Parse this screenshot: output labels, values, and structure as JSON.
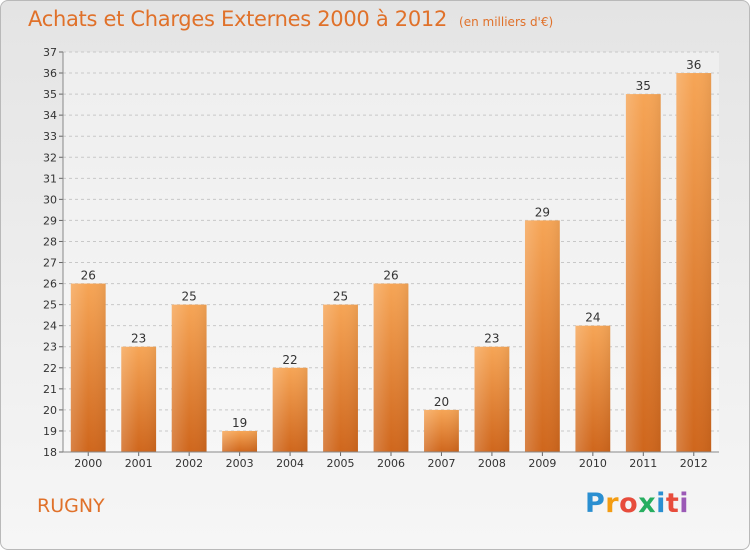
{
  "header": {
    "title": "Achats et Charges Externes 2000 à 2012",
    "unit": "(en milliers d'€)"
  },
  "footer": {
    "town": "RUGNY",
    "brand": "Proxiti",
    "brand_colors": [
      "#2a8fd1",
      "#f39c12",
      "#e74c3c",
      "#27ae60",
      "#2a8fd1",
      "#e74c3c",
      "#9b59b6"
    ]
  },
  "colors": {
    "accent": "#e0712a",
    "bar_top": "#f6a556",
    "bar_bottom": "#cf661c",
    "grid": "#c8c8c8",
    "axis_text": "#333333"
  },
  "chart_data": {
    "type": "bar",
    "title": "Achats et Charges Externes 2000 à 2012",
    "xlabel": "",
    "ylabel": "",
    "categories": [
      "2000",
      "2001",
      "2002",
      "2003",
      "2004",
      "2005",
      "2006",
      "2007",
      "2008",
      "2009",
      "2010",
      "2011",
      "2012"
    ],
    "values": [
      26,
      23,
      25,
      19,
      22,
      25,
      26,
      20,
      23,
      29,
      24,
      35,
      36
    ],
    "ylim": [
      18,
      37
    ],
    "yticks": [
      18,
      19,
      20,
      21,
      22,
      23,
      24,
      25,
      26,
      27,
      28,
      29,
      30,
      31,
      32,
      33,
      34,
      35,
      36,
      37
    ],
    "grid": true,
    "data_labels": true
  }
}
